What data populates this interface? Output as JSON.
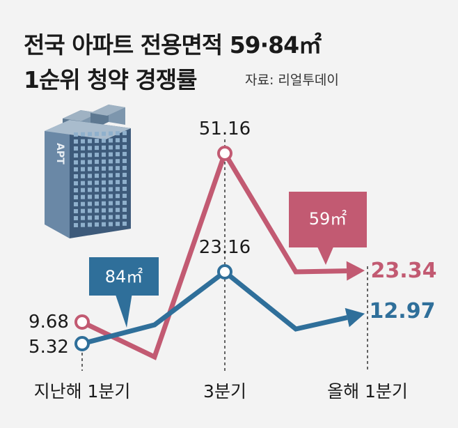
{
  "title_line1": "전국 아파트 전용면적 59·84㎡",
  "title_line2": "1순위 청약 경쟁률",
  "source": "자료: 리얼투데이",
  "building_label": "APT",
  "colors": {
    "series_59": "#c25a72",
    "series_84": "#2f6f9a",
    "background": "#f3f3f3"
  },
  "chart_data": {
    "type": "line",
    "categories": [
      "지난해 1분기",
      "3분기",
      "올해 1분기"
    ],
    "series": [
      {
        "name": "59㎡",
        "values": [
          9.68,
          51.16,
          23.34
        ],
        "value_labels": [
          "9.68",
          "51.16",
          "23.34"
        ],
        "color": "#c25a72"
      },
      {
        "name": "84㎡",
        "values": [
          5.32,
          23.16,
          12.97
        ],
        "value_labels": [
          "5.32",
          "23.16",
          "12.97"
        ],
        "color": "#2f6f9a"
      }
    ],
    "ylim": [
      0,
      55
    ],
    "grid": false
  }
}
